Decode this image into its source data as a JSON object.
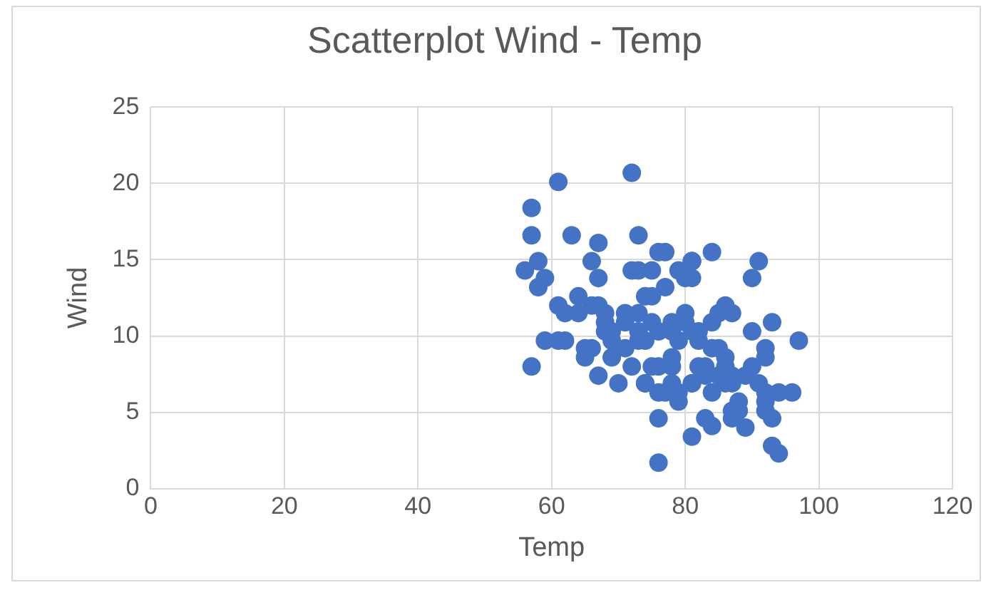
{
  "chart_data": {
    "type": "scatter",
    "title": "Scatterplot Wind - Temp",
    "xlabel": "Temp",
    "ylabel": "Wind",
    "x": [
      67,
      72,
      74,
      62,
      56,
      66,
      65,
      59,
      61,
      69,
      74,
      69,
      66,
      68,
      58,
      64,
      66,
      57,
      62,
      59,
      73,
      61,
      61,
      57,
      58,
      57,
      67,
      81,
      79,
      78,
      74,
      67,
      84,
      79,
      82,
      87,
      90,
      87,
      93,
      92,
      80,
      72,
      65,
      73,
      76,
      76,
      76,
      75,
      78,
      73,
      80,
      83,
      84,
      85,
      84,
      83,
      88,
      92,
      92,
      89,
      73,
      81,
      91,
      81,
      82,
      84,
      87,
      85,
      74,
      86,
      86,
      83,
      81,
      81,
      86,
      85,
      87,
      89,
      90,
      90,
      92,
      79,
      78,
      77,
      72,
      75,
      79,
      81,
      86,
      88,
      97,
      94,
      96,
      94,
      91,
      92,
      93,
      93,
      87,
      84,
      80,
      78,
      75,
      73,
      81,
      76,
      77,
      71,
      71,
      78,
      67,
      76,
      68,
      82,
      64,
      71,
      81,
      69,
      63,
      70,
      77,
      75,
      76,
      68
    ],
    "values": [
      7.4,
      8.0,
      12.6,
      11.5,
      14.3,
      14.9,
      8.6,
      13.8,
      20.1,
      8.6,
      6.9,
      9.7,
      9.2,
      10.9,
      13.2,
      11.5,
      12.0,
      18.4,
      9.7,
      9.7,
      16.6,
      9.7,
      12.0,
      16.6,
      14.9,
      8.0,
      12.0,
      14.9,
      5.7,
      8.6,
      9.7,
      16.1,
      9.2,
      14.3,
      9.7,
      6.9,
      13.8,
      11.5,
      10.9,
      9.2,
      13.8,
      20.7,
      9.2,
      11.5,
      1.7,
      4.6,
      6.3,
      8.0,
      8.0,
      10.3,
      11.5,
      8.0,
      4.1,
      9.2,
      10.9,
      4.6,
      5.1,
      6.3,
      5.7,
      7.4,
      14.3,
      14.9,
      14.9,
      6.9,
      10.3,
      6.3,
      5.1,
      11.5,
      6.9,
      8.6,
      12.0,
      7.4,
      6.9,
      13.8,
      6.9,
      7.4,
      4.6,
      4.0,
      10.3,
      8.0,
      8.6,
      6.3,
      10.9,
      15.5,
      14.3,
      12.6,
      9.7,
      3.4,
      8.0,
      5.7,
      9.7,
      2.3,
      6.3,
      6.3,
      6.9,
      5.1,
      2.8,
      4.6,
      7.4,
      15.5,
      10.9,
      10.3,
      10.9,
      9.7,
      14.9,
      15.5,
      6.3,
      10.9,
      11.5,
      6.9,
      13.8,
      10.3,
      10.3,
      8.0,
      12.6,
      9.2,
      10.3,
      10.3,
      16.6,
      6.9,
      13.2,
      14.3,
      8.0,
      11.5
    ],
    "color": "#4472c4",
    "marker": "circle",
    "xlim": [
      0,
      120
    ],
    "xticks": [
      0,
      20,
      40,
      60,
      80,
      100,
      120
    ],
    "ylim": [
      0,
      25
    ],
    "yticks": [
      0,
      5,
      10,
      15,
      20,
      25
    ],
    "grid": true,
    "legend": false
  }
}
